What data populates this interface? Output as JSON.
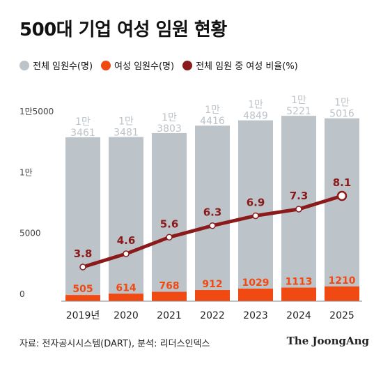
{
  "title": "500대 기업 여성 임원 현황",
  "legend": {
    "total_label": "전체 임원수(명)",
    "female_label": "여성 임원수(명)",
    "ratio_label": "전체 임원 중 여성 비율(%)"
  },
  "colors": {
    "total": "#bcc3c9",
    "female": "#f04a12",
    "ratio": "#8b1a1a",
    "axis_text": "#444444",
    "total_label": "#ffffff"
  },
  "chart_data": {
    "type": "bar",
    "categories": [
      "2019년",
      "2020",
      "2021",
      "2022",
      "2023",
      "2024",
      "2025"
    ],
    "series": [
      {
        "name": "전체 임원수(명)",
        "values": [
          13461,
          13481,
          13803,
          14416,
          14849,
          15221,
          15016
        ],
        "labels": [
          [
            "1만",
            "3461"
          ],
          [
            "1만",
            "3481"
          ],
          [
            "1만",
            "3803"
          ],
          [
            "1만",
            "4416"
          ],
          [
            "1만",
            "4849"
          ],
          [
            "1만",
            "5221"
          ],
          [
            "1만",
            "5016"
          ]
        ]
      },
      {
        "name": "여성 임원수(명)",
        "values": [
          505,
          614,
          768,
          912,
          1029,
          1113,
          1210
        ]
      },
      {
        "name": "전체 임원 중 여성 비율(%)",
        "type": "line",
        "values": [
          3.8,
          4.6,
          5.6,
          6.3,
          6.9,
          7.3,
          8.1
        ]
      }
    ],
    "y_ticks": [
      {
        "value": 0,
        "label": "0"
      },
      {
        "value": 5000,
        "label": "5000"
      },
      {
        "value": 10000,
        "label": "1만"
      },
      {
        "value": 15000,
        "label": "1만5000"
      }
    ],
    "ylim": [
      0,
      15000
    ],
    "grid": false
  },
  "footer": {
    "source": "자료: 전자공시시스템(DART), 분석: 리더스인덱스",
    "logo": "The JoongAng"
  }
}
